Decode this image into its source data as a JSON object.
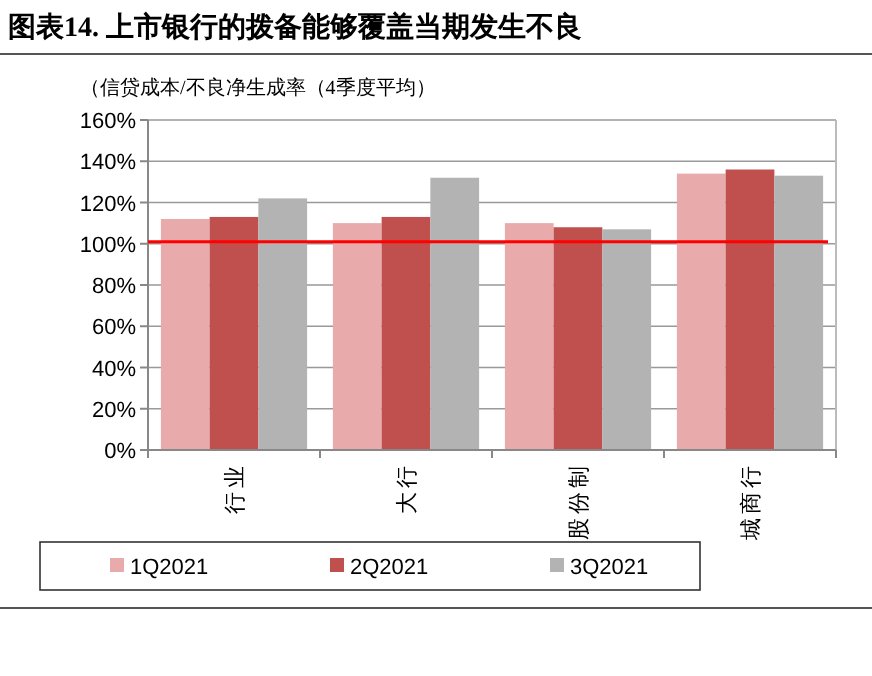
{
  "chart_data": {
    "type": "bar",
    "title": "图表14.   上市银行的拨备能够覆盖当期发生不良",
    "ylabel": "（信贷成本/不良净生成率（4季度平均）",
    "categories": [
      "行业",
      "大行",
      "股份制",
      "城商行"
    ],
    "series": [
      {
        "name": "1Q2021",
        "color": "#e8aaaa",
        "values": [
          112,
          110,
          110,
          134
        ]
      },
      {
        "name": "2Q2021",
        "color": "#c0504d",
        "values": [
          113,
          113,
          108,
          136
        ]
      },
      {
        "name": "3Q2021",
        "color": "#b3b3b3",
        "values": [
          122,
          132,
          107,
          133
        ]
      }
    ],
    "ylim": [
      0,
      160
    ],
    "yticks": [
      {
        "value": 0,
        "label": "0%"
      },
      {
        "value": 20,
        "label": "20%"
      },
      {
        "value": 40,
        "label": "40%"
      },
      {
        "value": 60,
        "label": "60%"
      },
      {
        "value": 80,
        "label": "80%"
      },
      {
        "value": 100,
        "label": "100%"
      },
      {
        "value": 120,
        "label": "120%"
      },
      {
        "value": 140,
        "label": "140%"
      },
      {
        "value": 160,
        "label": "160%"
      }
    ],
    "ref_lines": [
      {
        "axis": "y",
        "value": 101,
        "color": "#ff0000"
      }
    ],
    "grid": "y",
    "legend": "bottom"
  }
}
